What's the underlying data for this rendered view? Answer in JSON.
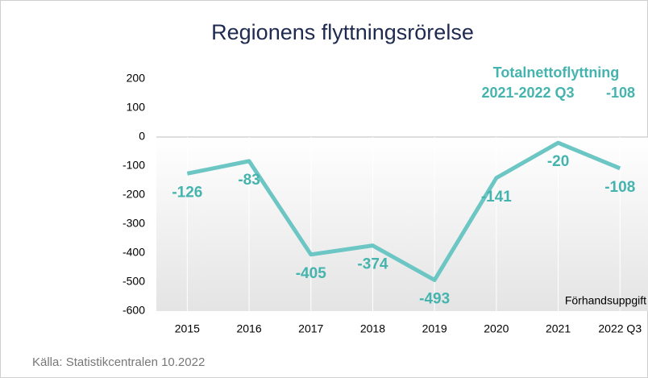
{
  "chart_data": {
    "type": "line",
    "title": "Regionens  flyttningsrörelse",
    "categories": [
      "2015",
      "2016",
      "2017",
      "2018",
      "2019",
      "2020",
      "2021",
      "2022 Q3"
    ],
    "series": [
      {
        "name": "Nettoflyttning",
        "color": "#6cc6c4",
        "values": [
          -126,
          -83,
          -405,
          -374,
          -493,
          -141,
          -20,
          -108
        ]
      }
    ],
    "ylim": [
      -600,
      200
    ],
    "yticks": [
      -600,
      -500,
      -400,
      -300,
      -200,
      -100,
      0,
      100,
      200
    ],
    "annotation": {
      "title": "Totalnettoflyttning",
      "period": "2021-2022 Q3",
      "value": -108
    },
    "note": "Förhandsuppgift",
    "source": "Källa: Statistikcentralen 10.2022"
  }
}
